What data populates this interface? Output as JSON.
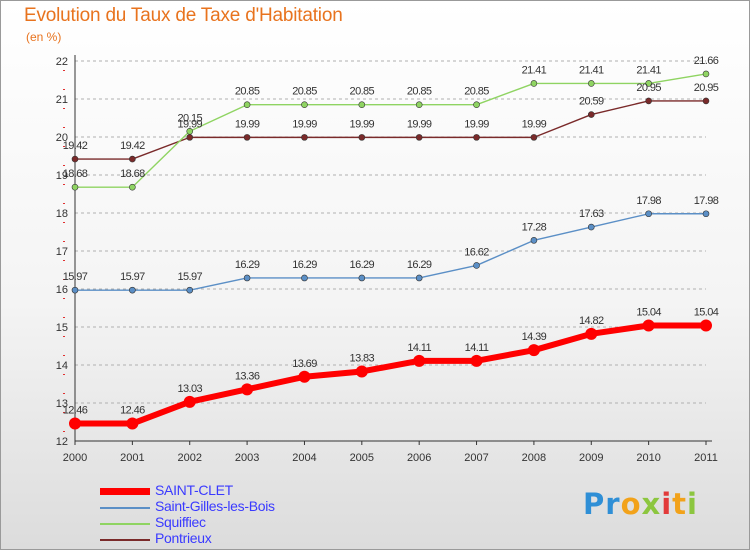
{
  "header": {
    "title": "Evolution du Taux de Taxe d'Habitation",
    "subtitle": "(en %)"
  },
  "logo": {
    "text": "Proxiti",
    "parts": [
      "Pr",
      "o",
      "x",
      "i",
      "t",
      "i"
    ]
  },
  "colors": {
    "title": "#e8731e",
    "axis": "#333333",
    "grid": "#b0b0b0",
    "legend_text": "#3a3aff"
  },
  "chart_data": {
    "type": "line",
    "title": "Evolution du Taux de Taxe d'Habitation",
    "ylabel": "(en %)",
    "xlabel": "",
    "x": [
      "2000",
      "2001",
      "2002",
      "2003",
      "2004",
      "2005",
      "2006",
      "2007",
      "2008",
      "2009",
      "2010",
      "2011"
    ],
    "ylim": [
      12,
      22
    ],
    "yticks": [
      "12",
      "13",
      "14",
      "15",
      "16",
      "17",
      "18",
      "19",
      "20",
      "21",
      "22"
    ],
    "grid": "dashed-horizontal",
    "legend_position": "bottom-left",
    "series": [
      {
        "name": "SAINT-CLET",
        "color": "#ff0000",
        "values": [
          12.46,
          12.46,
          13.03,
          13.36,
          13.69,
          13.83,
          14.11,
          14.11,
          14.39,
          14.82,
          15.04,
          15.04
        ],
        "labels": [
          "12.46",
          "12.46",
          "13.03",
          "13.36",
          "13.69",
          "13.83",
          "14.11",
          "14.11",
          "14.39",
          "14.82",
          "15.04",
          "15.04"
        ]
      },
      {
        "name": "Saint-Gilles-les-Bois",
        "color": "#5b8fc6",
        "values": [
          15.97,
          15.97,
          15.97,
          16.29,
          16.29,
          16.29,
          16.29,
          16.62,
          17.28,
          17.63,
          17.98,
          17.98
        ],
        "labels": [
          "15.97",
          "15.97",
          "15.97",
          "16.29",
          "16.29",
          "16.29",
          "16.29",
          "16.62",
          "17.28",
          "17.63",
          "17.98",
          "17.98"
        ]
      },
      {
        "name": "Squiffiec",
        "color": "#8fd462",
        "values": [
          18.68,
          18.68,
          20.15,
          20.85,
          20.85,
          20.85,
          20.85,
          20.85,
          21.41,
          21.41,
          21.41,
          21.66
        ],
        "labels": [
          "18.68",
          "18.68",
          "20.15",
          "20.85",
          "20.85",
          "20.85",
          "20.85",
          "20.85",
          "21.41",
          "21.41",
          "21.41",
          "21.66"
        ]
      },
      {
        "name": "Pontrieux",
        "color": "#7a2a2a",
        "values": [
          19.42,
          19.42,
          19.99,
          19.99,
          19.99,
          19.99,
          19.99,
          19.99,
          19.99,
          20.59,
          20.95,
          20.95
        ],
        "labels": [
          "19.42",
          "19.42",
          "19.99",
          "19.99",
          "19.99",
          "19.99",
          "19.99",
          "19.99",
          "19.99",
          "20.59",
          "20.95",
          "20.95"
        ]
      }
    ]
  }
}
